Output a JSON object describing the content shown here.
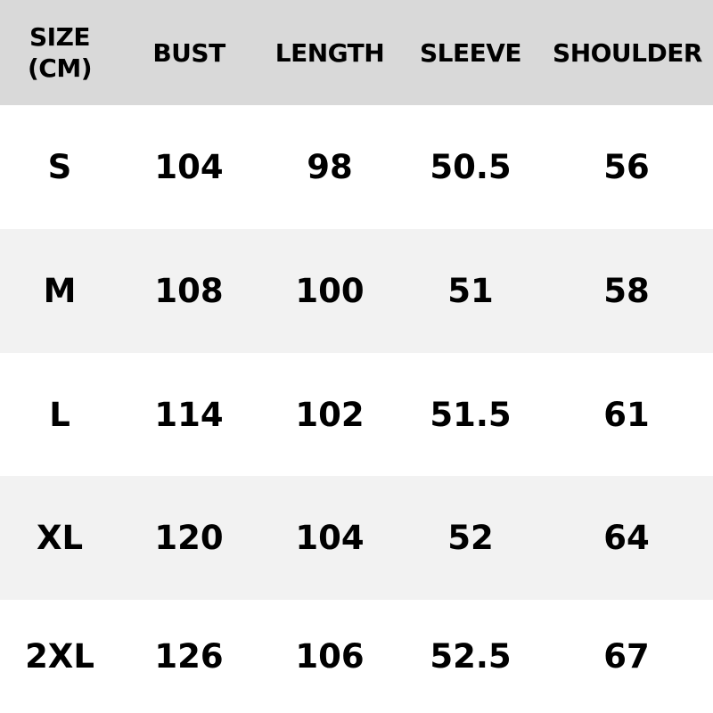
{
  "table": {
    "headers": [
      "SIZE\n(CM)",
      "BUST",
      "LENGTH",
      "SLEEVE",
      "SHOULDER"
    ],
    "rows": [
      [
        "S",
        "104",
        "98",
        "50.5",
        "56"
      ],
      [
        "M",
        "108",
        "100",
        "51",
        "58"
      ],
      [
        "L",
        "114",
        "102",
        "51.5",
        "61"
      ],
      [
        "XL",
        "120",
        "104",
        "52",
        "64"
      ],
      [
        "2XL",
        "126",
        "106",
        "52.5",
        "67"
      ]
    ]
  },
  "colors": {
    "header_bg": "#d9d9d9",
    "alt_row_bg": "#f2f2f2",
    "row_bg": "#ffffff"
  }
}
